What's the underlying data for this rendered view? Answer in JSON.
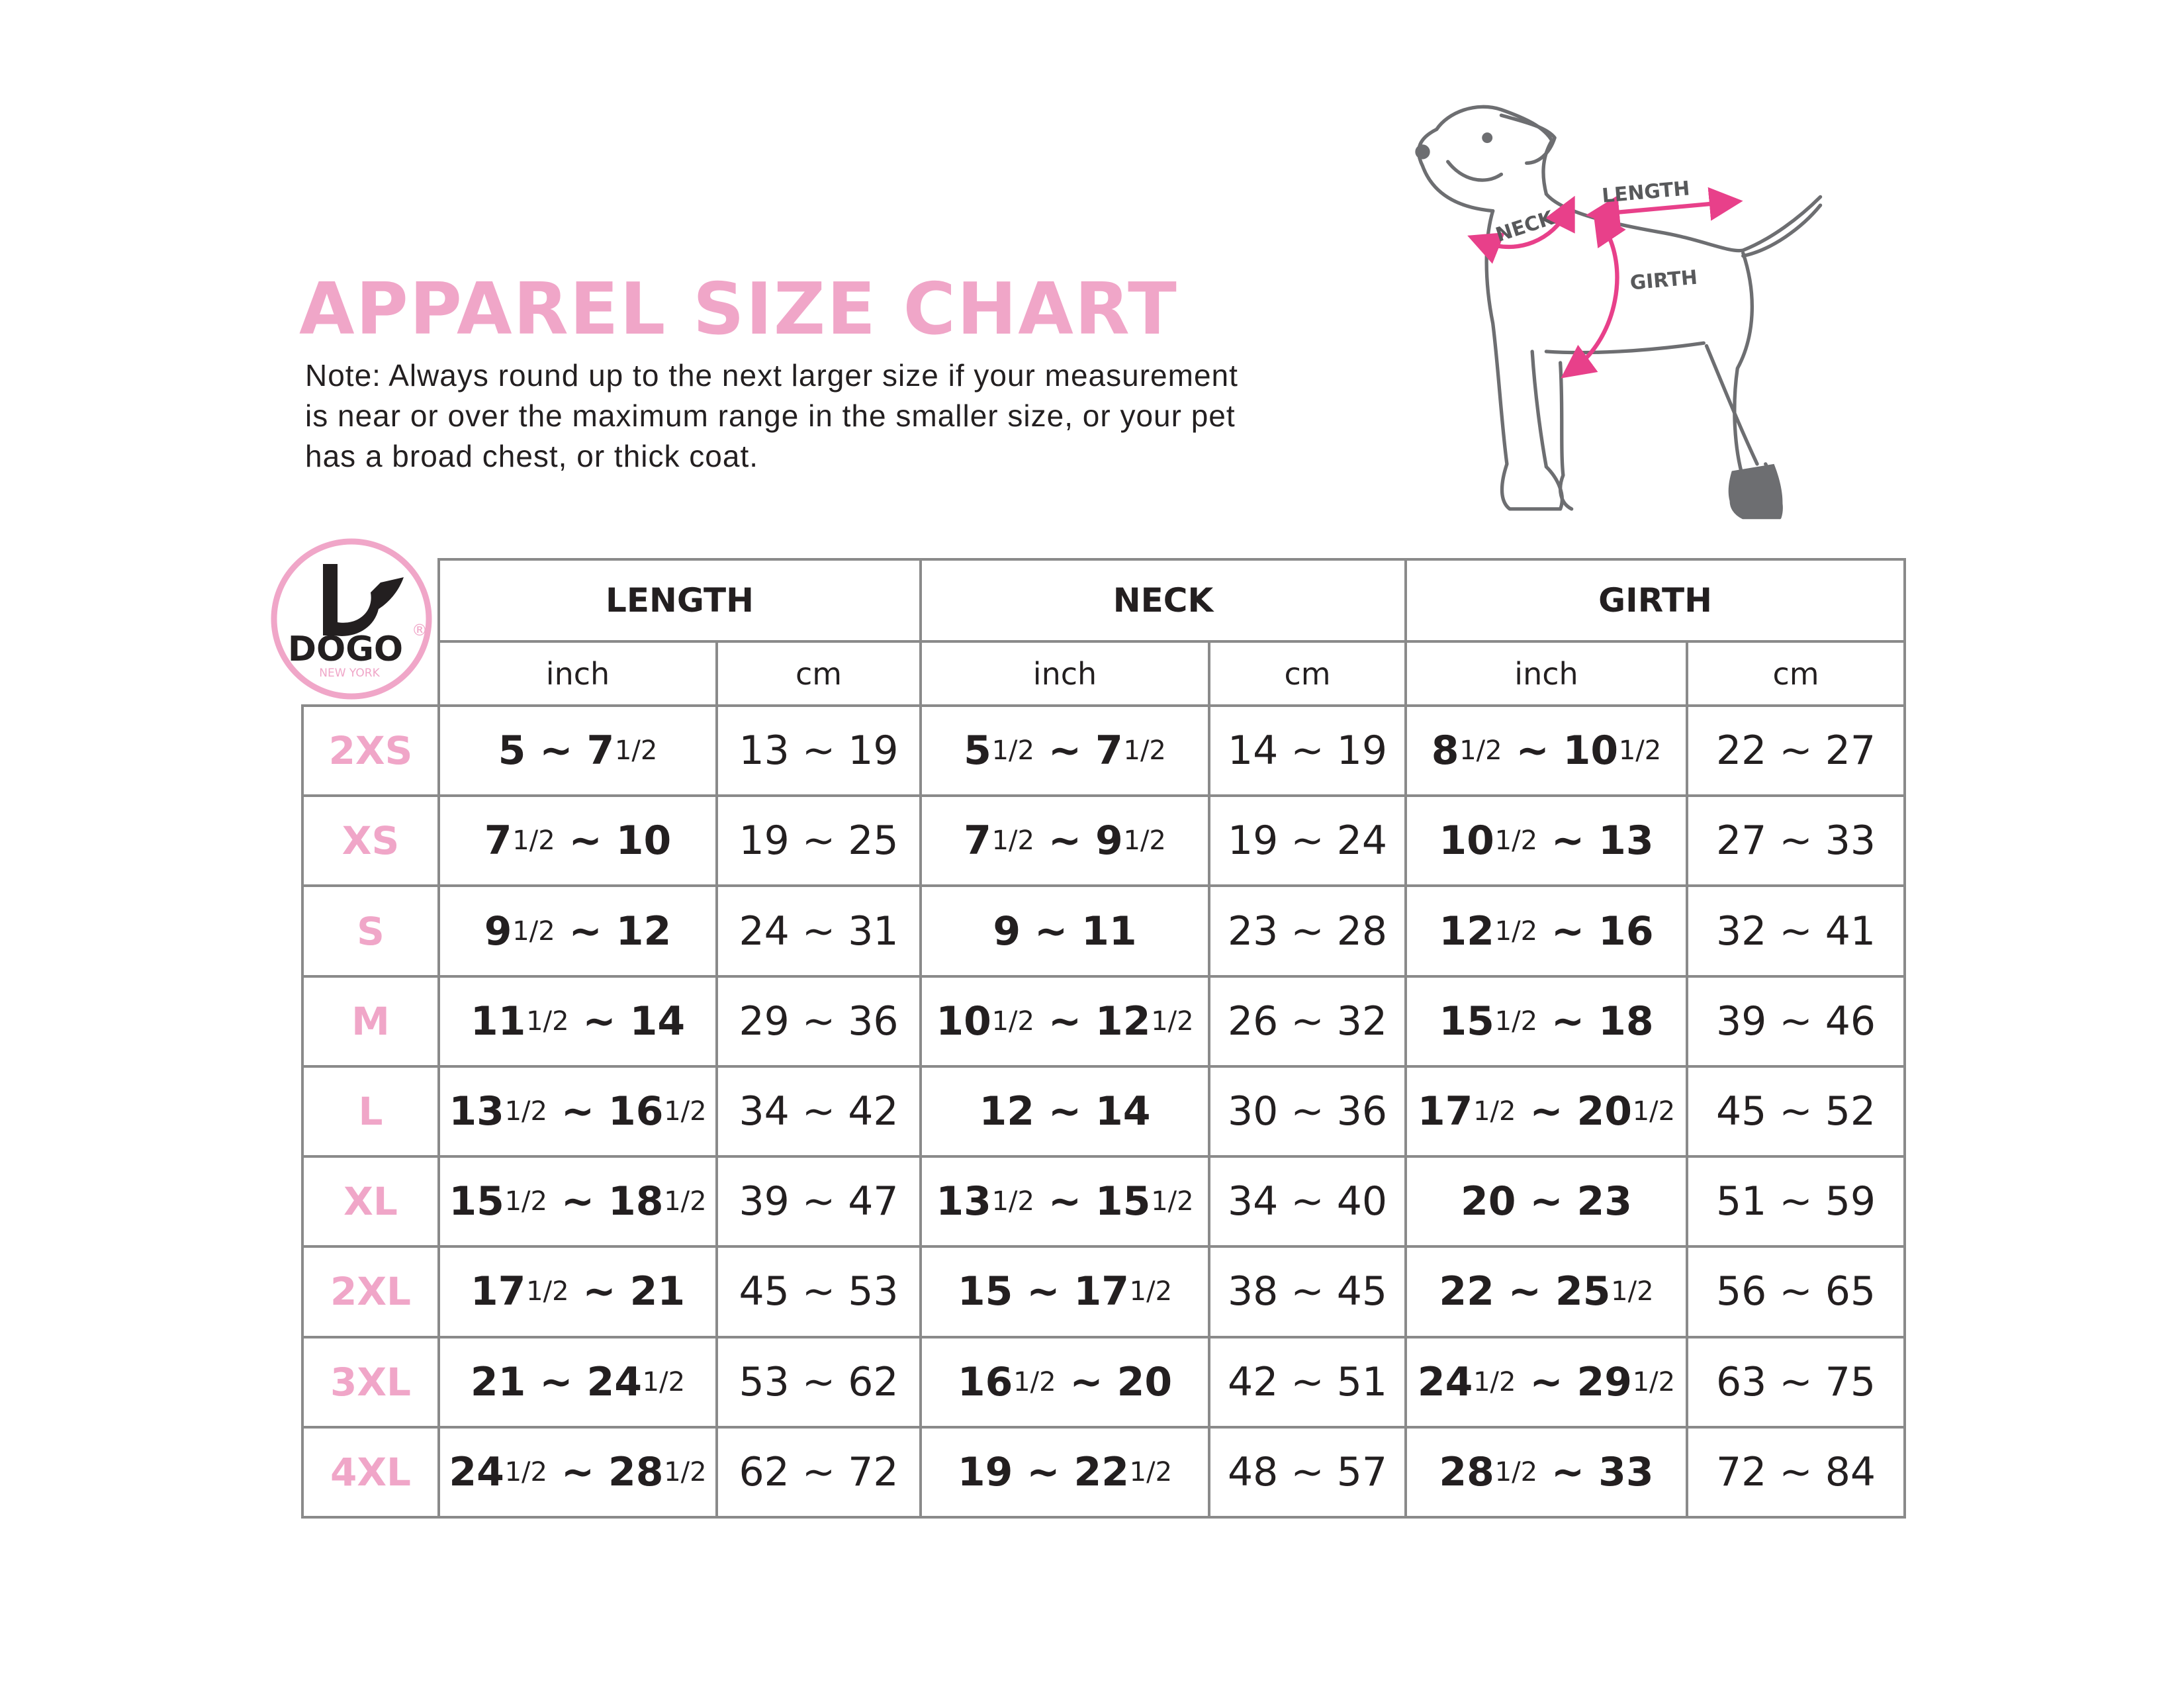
{
  "header": {
    "title": "APPAREL SIZE CHART",
    "note": [
      "Note: Always round up to the next larger size if your measurement",
      "is near or over the maximum range in the smaller size, or your pet",
      "has a broad chest, or thick coat."
    ]
  },
  "diagram": {
    "neck": "NECK",
    "length": "LENGTH",
    "girth": "GIRTH"
  },
  "logo": {
    "brand": "DOGO",
    "registered": "®",
    "city": "NEW YORK"
  },
  "table": {
    "groups": [
      "LENGTH",
      "NECK",
      "GIRTH"
    ],
    "units": [
      "inch",
      "cm",
      "inch",
      "cm",
      "inch",
      "cm"
    ],
    "rows": [
      [
        "2XS",
        "5 ~ 7 1/2",
        "13 ~ 19",
        "5 1/2 ~ 7 1/2",
        "14 ~ 19",
        "8 1/2 ~ 10 1/2",
        "22 ~ 27"
      ],
      [
        "XS",
        "7 1/2 ~ 10",
        "19 ~ 25",
        "7 1/2 ~ 9 1/2",
        "19 ~ 24",
        "10 1/2 ~ 13",
        "27 ~ 33"
      ],
      [
        "S",
        "9 1/2 ~ 12",
        "24 ~ 31",
        "9 ~ 11",
        "23 ~ 28",
        "12 1/2 ~ 16",
        "32 ~ 41"
      ],
      [
        "M",
        "11 1/2 ~ 14",
        "29 ~ 36",
        "10 1/2 ~ 12 1/2",
        "26 ~ 32",
        "15 1/2 ~ 18",
        "39 ~ 46"
      ],
      [
        "L",
        "13 1/2 ~ 16 1/2",
        "34 ~ 42",
        "12 ~ 14",
        "30 ~ 36",
        "17 1/2 ~ 20 1/2",
        "45 ~ 52"
      ],
      [
        "XL",
        "15 1/2 ~ 18 1/2",
        "39 ~ 47",
        "13 1/2 ~ 15 1/2",
        "34 ~ 40",
        "20 ~ 23",
        "51 ~ 59"
      ],
      [
        "2XL",
        "17 1/2 ~ 21",
        "45 ~ 53",
        "15 ~ 17 1/2",
        "38 ~ 45",
        "22 ~ 25 1/2",
        "56 ~ 65"
      ],
      [
        "3XL",
        "21 ~ 24 1/2",
        "53 ~ 62",
        "16 1/2 ~ 20",
        "42 ~ 51",
        "24 1/2 ~ 29 1/2",
        "63 ~ 75"
      ],
      [
        "4XL",
        "24 1/2 ~ 28 1/2",
        "62 ~ 72",
        "19 ~ 22 1/2",
        "48 ~ 57",
        "28 1/2 ~ 33",
        "72 ~ 84"
      ]
    ]
  }
}
